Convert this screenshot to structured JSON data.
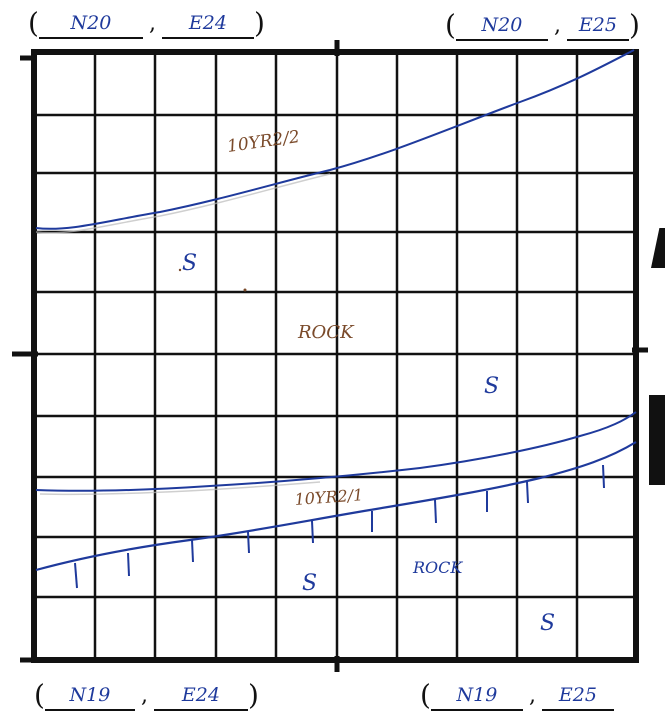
{
  "corners": {
    "top_left": {
      "n": "N20",
      "e": "E24"
    },
    "top_right": {
      "n": "N20",
      "e": "E25"
    },
    "bottom_left": {
      "n": "N19",
      "e": "E24"
    },
    "bottom_right": {
      "n": "N19",
      "e": "E25"
    }
  },
  "labels": {
    "upper_soil": "10YR2/2",
    "lower_soil": "10YR2/1",
    "s_upper": "S",
    "rock_middle": "ROCK",
    "s_middle": "S",
    "s_lower_left": "S",
    "rock_lower": "ROCK",
    "s_lower_right": "S"
  },
  "colors": {
    "grid": "#111111",
    "ink_blue": "#1f3a9c",
    "ink_brown": "#7a4a2a"
  }
}
